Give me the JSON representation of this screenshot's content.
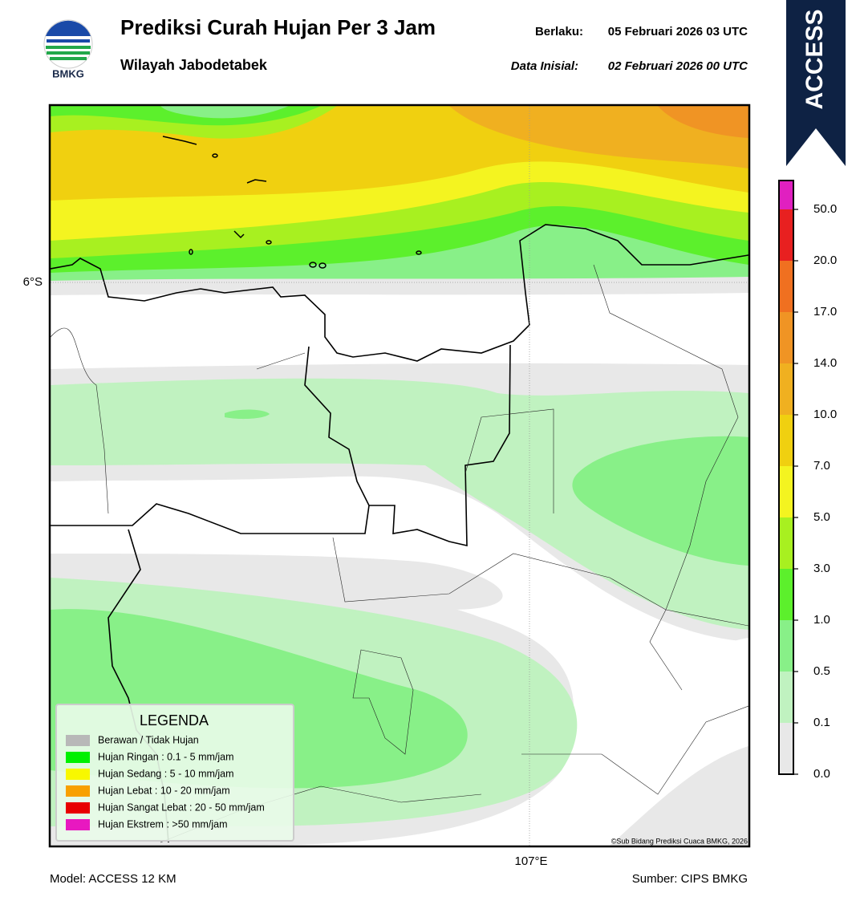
{
  "header": {
    "logo_text": "BMKG",
    "title": "Prediksi Curah Hujan Per 3 Jam",
    "subtitle": "Wilayah Jabodetabek",
    "valid_label": "Berlaku:",
    "valid_value": "05 Februari 2026 03 UTC",
    "init_label": "Data Inisial:",
    "init_value": "02 Februari 2026 00 UTC",
    "model_badge": "ACCESS"
  },
  "map": {
    "lat_label": "6°S",
    "lon_label": "107°E",
    "credit": "©Sub Bidang Prediksi Cuaca BMKG, 2026"
  },
  "legend": {
    "title": "LEGENDA",
    "items": [
      {
        "label": "Berawan / Tidak Hujan",
        "color": "#b8b8b8"
      },
      {
        "label": "Hujan Ringan : 0.1 - 5 mm/jam",
        "color": "#00f000"
      },
      {
        "label": "Hujan Sedang : 5 - 10 mm/jam",
        "color": "#f8f800"
      },
      {
        "label": "Hujan Lebat : 10 - 20 mm/jam",
        "color": "#f8a000"
      },
      {
        "label": "Hujan Sangat Lebat : 20 - 50 mm/jam",
        "color": "#e80000"
      },
      {
        "label": "Hujan Ekstrem : >50 mm/jam",
        "color": "#e818c0"
      }
    ]
  },
  "colorbar": {
    "ticks": [
      "0.0",
      "0.1",
      "0.5",
      "1.0",
      "3.0",
      "5.0",
      "7.0",
      "10.0",
      "14.0",
      "17.0",
      "20.0",
      "50.0"
    ],
    "colors": [
      "#e8e8e8",
      "#c0f2c0",
      "#88f088",
      "#5cf02c",
      "#a8f020",
      "#f4f420",
      "#f0d010",
      "#f0b020",
      "#f09424",
      "#f07020",
      "#e82020",
      "#e020c0"
    ]
  },
  "footer": {
    "model": "Model: ACCESS 12 KM",
    "source": "Sumber: CIPS BMKG"
  }
}
